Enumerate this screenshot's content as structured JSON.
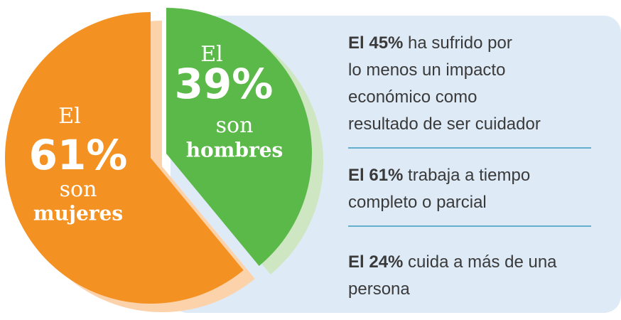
{
  "chart_data": {
    "type": "pie",
    "categories": [
      "mujeres",
      "hombres"
    ],
    "values": [
      61,
      39
    ],
    "value_labels": [
      "61%",
      "39%"
    ],
    "colors": [
      "#f39222",
      "#5bb94a"
    ],
    "prefix": "El",
    "connector": "son"
  },
  "facts": [
    {
      "highlight": "El 45%",
      "lines": [
        " ha sufrido por",
        "lo menos un impacto",
        "económico como",
        "resultado de ser cuidador"
      ]
    },
    {
      "highlight": "El 61%",
      "lines": [
        " trabaja a tiempo",
        "completo o parcial"
      ]
    },
    {
      "highlight": "El 24%",
      "lines": [
        " cuida a más de una",
        "persona"
      ]
    }
  ]
}
